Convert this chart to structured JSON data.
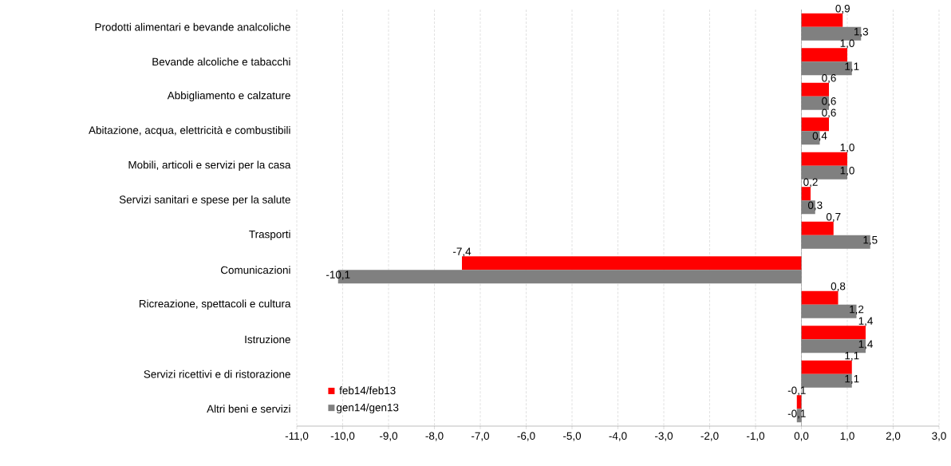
{
  "chart_data": {
    "type": "bar",
    "orientation": "horizontal",
    "categories": [
      "Prodotti alimentari e bevande analcoliche",
      "Bevande alcoliche e tabacchi",
      "Abbigliamento e calzature",
      "Abitazione, acqua, elettricità e combustibili",
      "Mobili, articoli e servizi per la casa",
      "Servizi sanitari e spese per la salute",
      "Trasporti",
      "Comunicazioni",
      "Ricreazione, spettacoli e cultura",
      "Istruzione",
      "Servizi ricettivi e di ristorazione",
      "Altri beni e servizi"
    ],
    "series": [
      {
        "name": "feb14/feb13",
        "color": "#ff0000",
        "values": [
          0.9,
          1.0,
          0.6,
          0.6,
          1.0,
          0.2,
          0.7,
          -7.4,
          0.8,
          1.4,
          1.1,
          -0.1
        ],
        "value_labels": [
          "0,9",
          "1,0",
          "0,6",
          "0,6",
          "1,0",
          "0,2",
          "0,7",
          "-7,4",
          "0,8",
          "1,4",
          "1,1",
          "-0,1"
        ]
      },
      {
        "name": "gen14/gen13",
        "color": "#808080",
        "values": [
          1.3,
          1.1,
          0.6,
          0.4,
          1.0,
          0.3,
          1.5,
          -10.1,
          1.2,
          1.4,
          1.1,
          -0.1
        ],
        "value_labels": [
          "1,3",
          "1,1",
          "0,6",
          "0,4",
          "1,0",
          "0,3",
          "1,5",
          "-10,1",
          "1,2",
          "1,4",
          "1,1",
          "-0,1"
        ]
      }
    ],
    "xlim": [
      -11,
      3
    ],
    "xticks": [
      {
        "value": -11,
        "label": "-11,0"
      },
      {
        "value": -10,
        "label": "-10,0"
      },
      {
        "value": -9,
        "label": "-9,0"
      },
      {
        "value": -8,
        "label": "-8,0"
      },
      {
        "value": -7,
        "label": "-7,0"
      },
      {
        "value": -6,
        "label": "-6,0"
      },
      {
        "value": -5,
        "label": "-5,0"
      },
      {
        "value": -4,
        "label": "-4,0"
      },
      {
        "value": -3,
        "label": "-3,0"
      },
      {
        "value": -2,
        "label": "-2,0"
      },
      {
        "value": -1,
        "label": "-1,0"
      },
      {
        "value": 0,
        "label": "0,0"
      },
      {
        "value": 1,
        "label": "1,0"
      },
      {
        "value": 2,
        "label": "2,0"
      },
      {
        "value": 3,
        "label": "3,0"
      }
    ],
    "grid": "x",
    "legend": "bottom left"
  }
}
